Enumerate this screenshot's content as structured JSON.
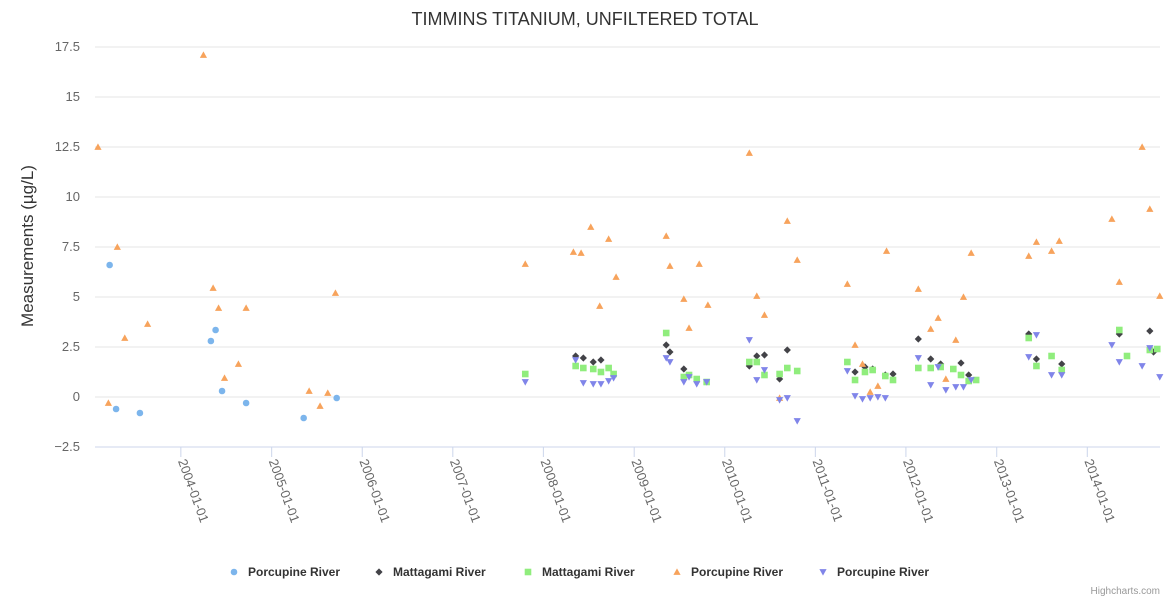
{
  "chart_data": {
    "type": "scatter",
    "title": "TIMMINS TITANIUM, UNFILTERED TOTAL",
    "xlabel": "",
    "ylabel": "Measurements (µg/L)",
    "xlim": [
      "2003-01-20",
      "2014-10-21"
    ],
    "ylim": [
      -2.5,
      17.5
    ],
    "yticks": [
      -2.5,
      0,
      2.5,
      5,
      7.5,
      10,
      12.5,
      15,
      17.5
    ],
    "ytick_labels": [
      "−2.5",
      "0",
      "2.5",
      "5",
      "7.5",
      "10",
      "12.5",
      "15",
      "17.5"
    ],
    "xticks": [
      "2004-01-01",
      "2005-01-01",
      "2006-01-01",
      "2007-01-01",
      "2008-01-01",
      "2009-01-01",
      "2010-01-01",
      "2011-01-01",
      "2012-01-01",
      "2013-01-01",
      "2014-01-01"
    ],
    "grid": "horizontal",
    "legend": "bottom-center",
    "series": [
      {
        "name": "Porcupine River",
        "marker": "circle",
        "color": "#7cb5ec",
        "points": [
          [
            "2003-03-20",
            6.6
          ],
          [
            "2003-04-15",
            -0.6
          ],
          [
            "2003-07-20",
            -0.8
          ],
          [
            "2004-05-01",
            2.8
          ],
          [
            "2004-05-20",
            3.35
          ],
          [
            "2004-06-15",
            0.3
          ],
          [
            "2004-09-20",
            -0.3
          ],
          [
            "2005-05-10",
            -1.05
          ],
          [
            "2005-09-20",
            -0.05
          ]
        ]
      },
      {
        "name": "Mattagami River",
        "marker": "diamond",
        "color": "#434348",
        "points": [
          [
            "2008-05-10",
            2.05
          ],
          [
            "2008-06-10",
            1.95
          ],
          [
            "2008-07-20",
            1.75
          ],
          [
            "2008-08-20",
            1.85
          ],
          [
            "2009-05-10",
            2.6
          ],
          [
            "2009-05-25",
            2.25
          ],
          [
            "2009-07-20",
            1.4
          ],
          [
            "2010-04-10",
            1.55
          ],
          [
            "2010-05-10",
            2.05
          ],
          [
            "2010-06-10",
            2.1
          ],
          [
            "2010-08-10",
            0.9
          ],
          [
            "2010-09-10",
            2.35
          ],
          [
            "2011-06-10",
            1.25
          ],
          [
            "2011-07-20",
            1.5
          ],
          [
            "2011-08-20",
            1.4
          ],
          [
            "2011-10-10",
            1.1
          ],
          [
            "2011-11-10",
            1.15
          ],
          [
            "2012-02-20",
            2.9
          ],
          [
            "2012-04-10",
            1.9
          ],
          [
            "2012-05-20",
            1.65
          ],
          [
            "2012-08-10",
            1.7
          ],
          [
            "2012-09-10",
            1.1
          ],
          [
            "2013-05-10",
            3.15
          ],
          [
            "2013-06-10",
            1.9
          ],
          [
            "2013-09-20",
            1.65
          ],
          [
            "2014-05-10",
            3.15
          ],
          [
            "2014-09-10",
            3.3
          ],
          [
            "2014-09-25",
            2.25
          ]
        ]
      },
      {
        "name": "Mattagami River",
        "marker": "square",
        "color": "#90ed7d",
        "points": [
          [
            "2007-10-20",
            1.15
          ],
          [
            "2008-05-10",
            1.55
          ],
          [
            "2008-06-10",
            1.45
          ],
          [
            "2008-07-20",
            1.4
          ],
          [
            "2008-08-20",
            1.25
          ],
          [
            "2008-09-20",
            1.45
          ],
          [
            "2008-10-10",
            1.15
          ],
          [
            "2009-05-10",
            3.2
          ],
          [
            "2009-07-20",
            1.0
          ],
          [
            "2009-08-10",
            1.1
          ],
          [
            "2009-09-10",
            0.9
          ],
          [
            "2009-10-20",
            0.75
          ],
          [
            "2010-04-10",
            1.75
          ],
          [
            "2010-05-10",
            1.75
          ],
          [
            "2010-06-10",
            1.1
          ],
          [
            "2010-08-10",
            1.15
          ],
          [
            "2010-09-10",
            1.45
          ],
          [
            "2010-10-20",
            1.3
          ],
          [
            "2011-05-10",
            1.75
          ],
          [
            "2011-06-10",
            0.85
          ],
          [
            "2011-07-20",
            1.25
          ],
          [
            "2011-08-20",
            1.35
          ],
          [
            "2011-10-10",
            1.05
          ],
          [
            "2011-11-10",
            0.85
          ],
          [
            "2012-02-20",
            1.45
          ],
          [
            "2012-04-10",
            1.45
          ],
          [
            "2012-05-20",
            1.5
          ],
          [
            "2012-07-10",
            1.4
          ],
          [
            "2012-08-10",
            1.1
          ],
          [
            "2012-09-10",
            0.8
          ],
          [
            "2012-10-10",
            0.85
          ],
          [
            "2013-05-10",
            2.95
          ],
          [
            "2013-06-10",
            1.55
          ],
          [
            "2013-08-10",
            2.05
          ],
          [
            "2013-09-20",
            1.35
          ],
          [
            "2014-05-10",
            3.35
          ],
          [
            "2014-06-10",
            2.05
          ],
          [
            "2014-09-10",
            2.35
          ],
          [
            "2014-10-10",
            2.4
          ]
        ]
      },
      {
        "name": "Porcupine River",
        "marker": "triangle",
        "color": "#f7a35c",
        "points": [
          [
            "2003-02-01",
            12.5
          ],
          [
            "2003-03-15",
            -0.3
          ],
          [
            "2003-04-20",
            7.5
          ],
          [
            "2003-05-20",
            2.95
          ],
          [
            "2003-08-20",
            3.65
          ],
          [
            "2004-04-01",
            17.1
          ],
          [
            "2004-05-10",
            5.45
          ],
          [
            "2004-06-01",
            4.45
          ],
          [
            "2004-06-25",
            0.95
          ],
          [
            "2004-08-20",
            1.65
          ],
          [
            "2004-09-20",
            4.45
          ],
          [
            "2005-06-01",
            0.3
          ],
          [
            "2005-07-15",
            -0.45
          ],
          [
            "2005-08-15",
            0.2
          ],
          [
            "2005-09-15",
            5.2
          ],
          [
            "2007-10-20",
            6.65
          ],
          [
            "2008-05-01",
            7.25
          ],
          [
            "2008-06-01",
            7.2
          ],
          [
            "2008-07-10",
            8.5
          ],
          [
            "2008-08-15",
            4.55
          ],
          [
            "2008-09-20",
            7.9
          ],
          [
            "2008-10-20",
            6.0
          ],
          [
            "2009-05-10",
            8.05
          ],
          [
            "2009-05-25",
            6.55
          ],
          [
            "2009-07-20",
            4.9
          ],
          [
            "2009-08-10",
            3.45
          ],
          [
            "2009-09-20",
            6.65
          ],
          [
            "2009-10-25",
            4.6
          ],
          [
            "2010-04-10",
            12.2
          ],
          [
            "2010-05-10",
            5.05
          ],
          [
            "2010-06-10",
            4.1
          ],
          [
            "2010-08-10",
            -0.05
          ],
          [
            "2010-09-10",
            8.8
          ],
          [
            "2010-10-20",
            6.85
          ],
          [
            "2011-05-10",
            5.65
          ],
          [
            "2011-06-10",
            2.6
          ],
          [
            "2011-07-10",
            1.65
          ],
          [
            "2011-08-10",
            0.25
          ],
          [
            "2011-09-10",
            0.55
          ],
          [
            "2011-10-15",
            7.3
          ],
          [
            "2012-02-20",
            5.4
          ],
          [
            "2012-04-10",
            3.4
          ],
          [
            "2012-05-10",
            3.95
          ],
          [
            "2012-06-10",
            0.9
          ],
          [
            "2012-07-20",
            2.85
          ],
          [
            "2012-08-20",
            5.0
          ],
          [
            "2012-09-20",
            7.2
          ],
          [
            "2013-05-10",
            7.05
          ],
          [
            "2013-06-10",
            7.75
          ],
          [
            "2013-08-10",
            7.3
          ],
          [
            "2013-09-10",
            7.8
          ],
          [
            "2014-04-10",
            8.9
          ],
          [
            "2014-05-10",
            5.75
          ],
          [
            "2014-08-10",
            12.5
          ],
          [
            "2014-09-10",
            9.4
          ],
          [
            "2014-10-20",
            5.05
          ]
        ]
      },
      {
        "name": "Porcupine River",
        "marker": "triangle-down",
        "color": "#8085e9",
        "points": [
          [
            "2007-10-20",
            0.75
          ],
          [
            "2008-05-10",
            1.85
          ],
          [
            "2008-06-10",
            0.7
          ],
          [
            "2008-07-20",
            0.65
          ],
          [
            "2008-08-20",
            0.65
          ],
          [
            "2008-09-20",
            0.8
          ],
          [
            "2008-10-10",
            0.95
          ],
          [
            "2009-05-10",
            1.95
          ],
          [
            "2009-05-25",
            1.75
          ],
          [
            "2009-07-20",
            0.75
          ],
          [
            "2009-08-10",
            1.0
          ],
          [
            "2009-09-10",
            0.65
          ],
          [
            "2009-10-20",
            0.75
          ],
          [
            "2010-04-10",
            2.85
          ],
          [
            "2010-05-10",
            0.85
          ],
          [
            "2010-06-10",
            1.35
          ],
          [
            "2010-08-10",
            -0.15
          ],
          [
            "2010-09-10",
            -0.05
          ],
          [
            "2010-10-20",
            -1.2
          ],
          [
            "2011-05-10",
            1.3
          ],
          [
            "2011-06-10",
            0.05
          ],
          [
            "2011-07-10",
            -0.1
          ],
          [
            "2011-08-10",
            -0.05
          ],
          [
            "2011-09-10",
            0.0
          ],
          [
            "2011-10-10",
            -0.05
          ],
          [
            "2012-02-20",
            1.95
          ],
          [
            "2012-04-10",
            0.6
          ],
          [
            "2012-05-10",
            1.5
          ],
          [
            "2012-06-10",
            0.35
          ],
          [
            "2012-07-20",
            0.5
          ],
          [
            "2012-08-20",
            0.5
          ],
          [
            "2012-09-20",
            0.85
          ],
          [
            "2013-05-10",
            2.0
          ],
          [
            "2013-06-10",
            3.1
          ],
          [
            "2013-08-10",
            1.1
          ],
          [
            "2013-09-20",
            1.1
          ],
          [
            "2014-04-10",
            2.6
          ],
          [
            "2014-05-10",
            1.75
          ],
          [
            "2014-08-10",
            1.55
          ],
          [
            "2014-09-10",
            2.45
          ],
          [
            "2014-10-20",
            1.0
          ]
        ]
      }
    ]
  },
  "credits": "Highcharts.com"
}
